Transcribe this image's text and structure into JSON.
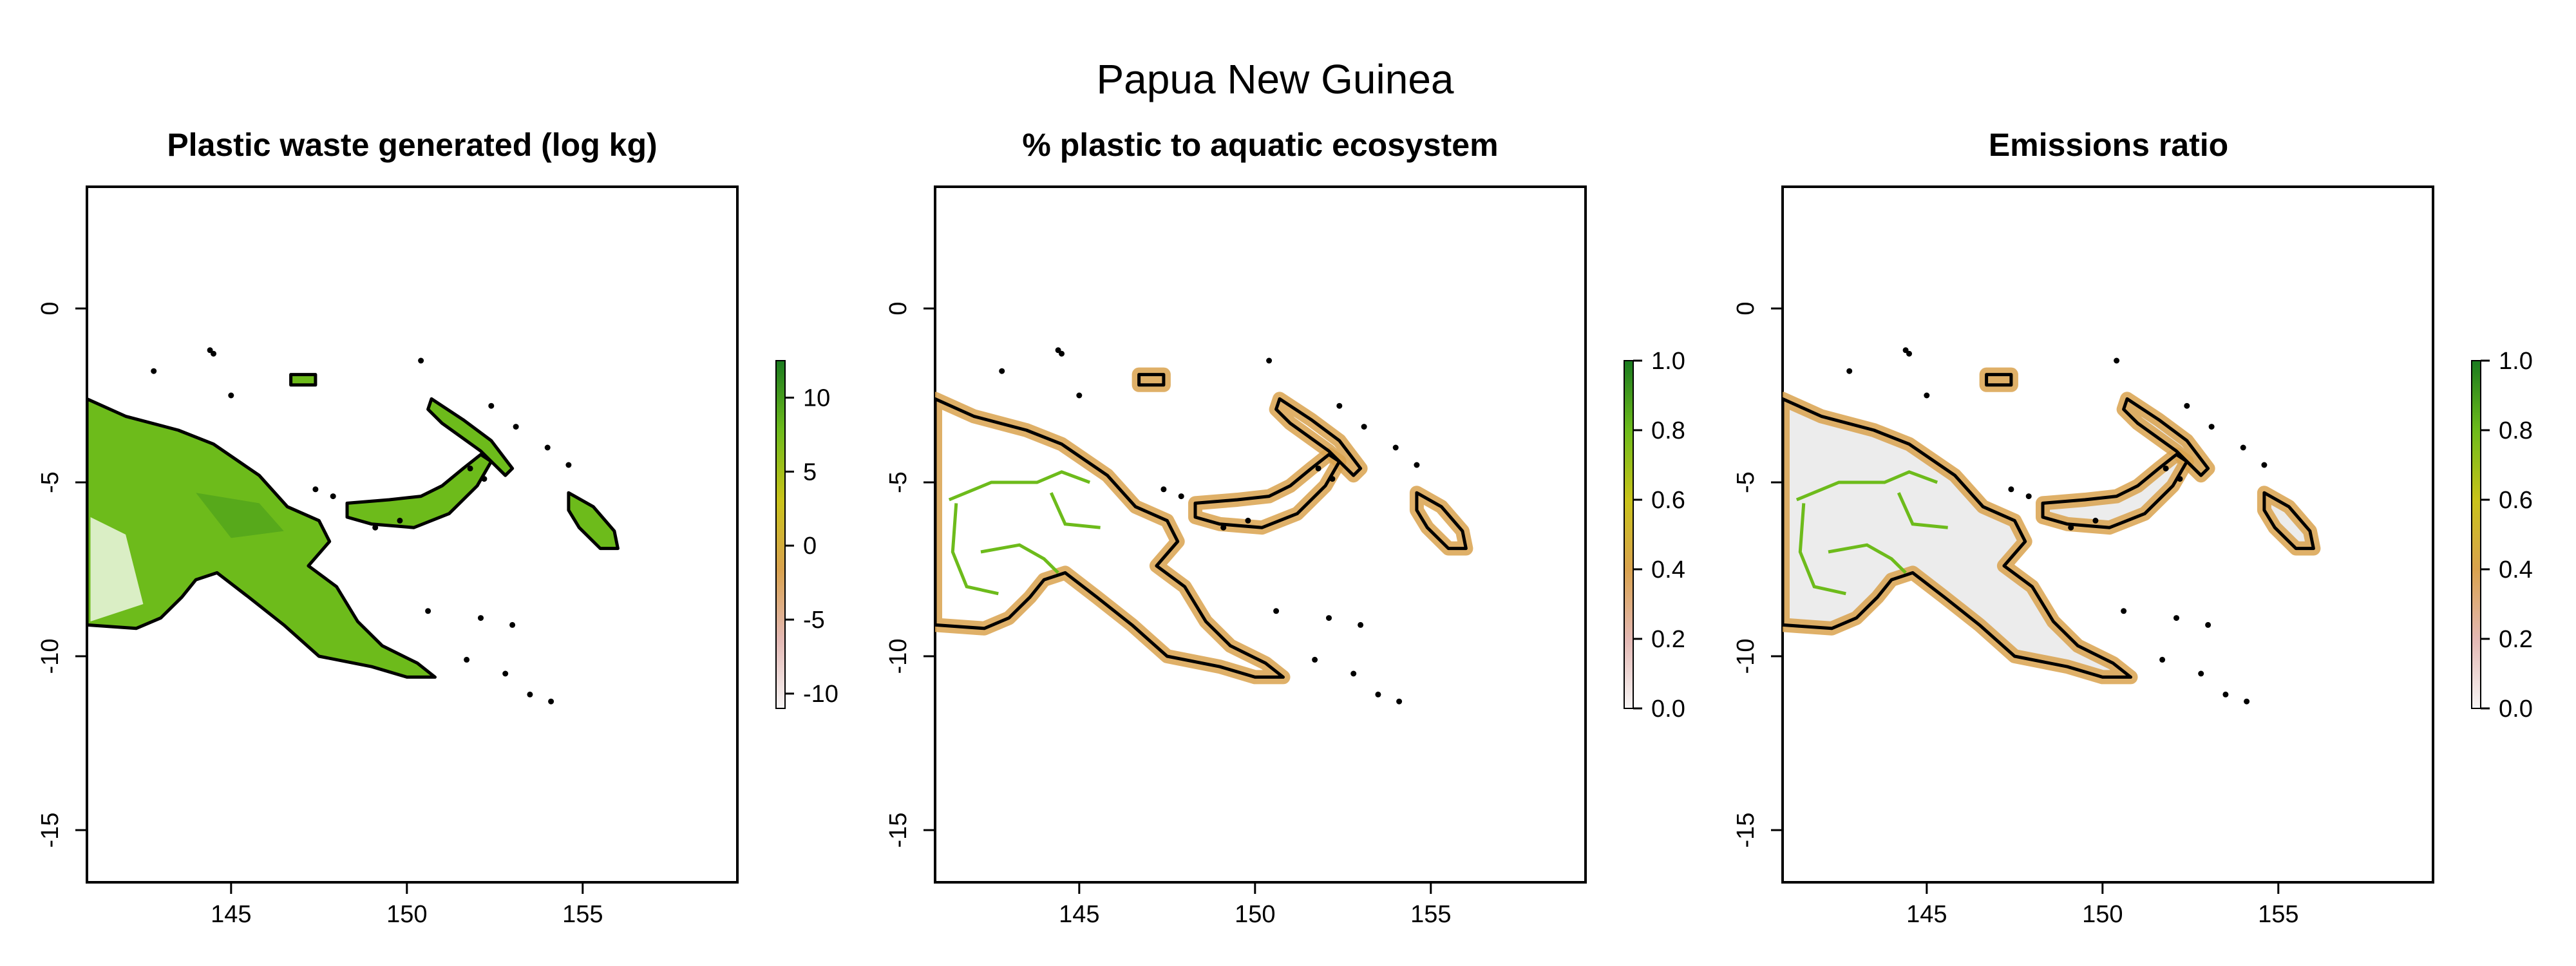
{
  "figure": {
    "title": "Papua New Guinea"
  },
  "panels": [
    {
      "title": "Plastic waste generated (log kg)",
      "legend_ticks": [
        10,
        5,
        0,
        -5,
        -10
      ],
      "legend_tick_labels": [
        "10",
        "5",
        "0",
        "-5",
        "-10"
      ],
      "legend_range": [
        -11,
        12.5
      ],
      "fill_style": "waste"
    },
    {
      "title": "% plastic to aquatic ecosystem",
      "legend_ticks": [
        1.0,
        0.8,
        0.6,
        0.4,
        0.2,
        0.0
      ],
      "legend_tick_labels": [
        "1.0",
        "0.8",
        "0.6",
        "0.4",
        "0.2",
        "0.0"
      ],
      "legend_range": [
        0,
        1
      ],
      "fill_style": "percent"
    },
    {
      "title": "Emissions ratio",
      "legend_ticks": [
        1.0,
        0.8,
        0.6,
        0.4,
        0.2,
        0.0
      ],
      "legend_tick_labels": [
        "1.0",
        "0.8",
        "0.6",
        "0.4",
        "0.2",
        "0.0"
      ],
      "legend_range": [
        0,
        1
      ],
      "fill_style": "emissions"
    }
  ],
  "axes": {
    "x_ticks": [
      145,
      150,
      155
    ],
    "x_tick_labels": [
      "145",
      "150",
      "155"
    ],
    "y_ticks": [
      0,
      -5,
      -10,
      -15
    ],
    "y_tick_labels": [
      "0",
      "-5",
      "-10",
      "-15"
    ],
    "xlim": [
      140.9,
      159.4
    ],
    "ylim": [
      -16.5,
      3.5
    ]
  },
  "colors": {
    "high": "#1a7a1f",
    "mid_high": "#6dbb1b",
    "mid": "#c9c31a",
    "mid_low": "#d9a24e",
    "low": "#e0b8b4",
    "lowest": "#f4eeee",
    "outline": "#000000",
    "interior_light": "#ececec"
  }
}
